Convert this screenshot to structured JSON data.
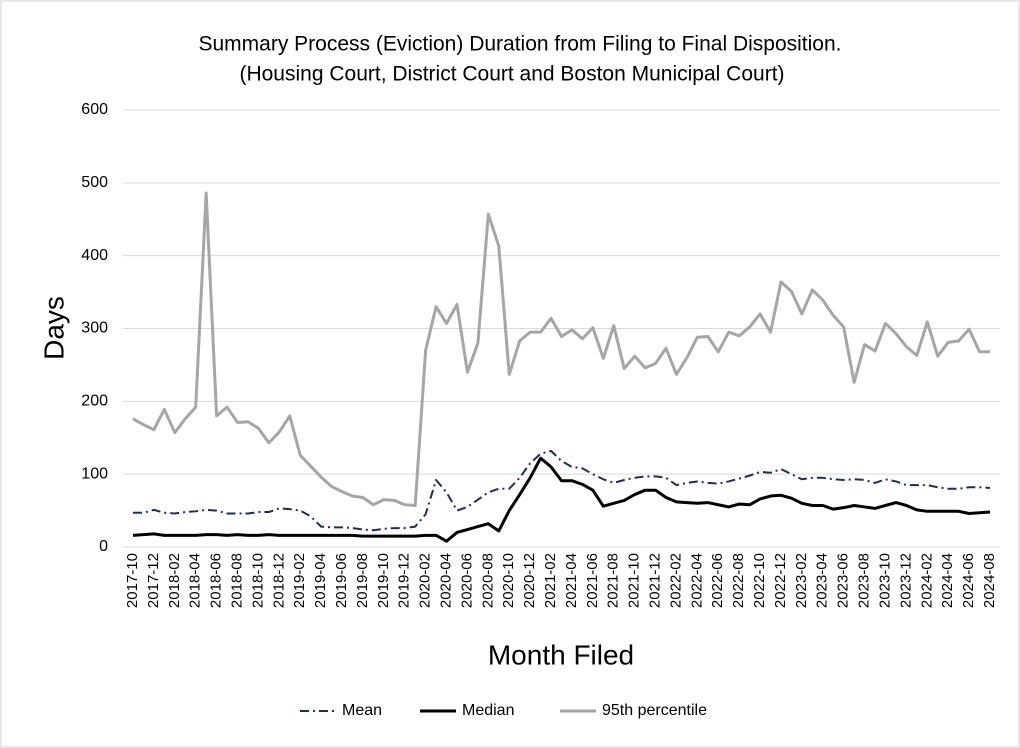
{
  "chart_data": {
    "type": "line",
    "title": "Summary Process (Eviction) Duration from Filing to Final Disposition.",
    "subtitle": "(Housing Court, District Court and Boston Municipal Court)",
    "y_label": "Days",
    "x_label": "Month Filed",
    "categories": [
      "2017-10",
      null,
      "2017-12",
      null,
      "2018-02",
      null,
      "2018-04",
      null,
      "2018-06",
      null,
      "2018-08",
      null,
      "2018-10",
      null,
      "2018-12",
      null,
      "2019-02",
      null,
      "2019-04",
      null,
      "2019-06",
      null,
      "2019-08",
      null,
      "2019-10",
      null,
      "2019-12",
      null,
      "2020-02",
      null,
      "2020-04",
      null,
      "2020-06",
      null,
      "2020-08",
      null,
      "2020-10",
      null,
      "2020-12",
      null,
      "2021-02",
      null,
      "2021-04",
      null,
      "2021-06",
      null,
      "2021-08",
      null,
      "2021-10",
      null,
      "2021-12",
      null,
      "2022-02",
      null,
      "2022-04",
      null,
      "2022-06",
      null,
      "2022-08",
      null,
      "2022-10",
      null,
      "2022-12",
      null,
      "2023-02",
      null,
      "2023-04",
      null,
      "2023-06",
      null,
      "2023-08",
      null,
      "2023-10",
      null,
      "2023-12",
      null,
      "2024-02",
      null,
      "2024-04",
      null,
      "2024-06",
      null,
      "2024-08"
    ],
    "series": [
      {
        "name": "Mean",
        "color": "#1f2d5a",
        "dash": true,
        "values": [
          47,
          47,
          51,
          47,
          46,
          48,
          49,
          51,
          50,
          46,
          46,
          46,
          48,
          48,
          53,
          52,
          50,
          42,
          28,
          27,
          27,
          26,
          24,
          23,
          25,
          26,
          26,
          28,
          45,
          92,
          75,
          50,
          55,
          65,
          75,
          80,
          80,
          95,
          115,
          128,
          132,
          118,
          110,
          108,
          100,
          93,
          88,
          92,
          95,
          97,
          97,
          95,
          85,
          88,
          90,
          88,
          87,
          90,
          94,
          98,
          103,
          102,
          107,
          100,
          93,
          95,
          95,
          93,
          92,
          93,
          92,
          88,
          93,
          90,
          85,
          85,
          85,
          82,
          80,
          80,
          82,
          82,
          81
        ]
      },
      {
        "name": "Median",
        "color": "#000000",
        "dash": false,
        "values": [
          16,
          17,
          18,
          16,
          16,
          16,
          16,
          17,
          17,
          16,
          17,
          16,
          16,
          17,
          16,
          16,
          16,
          16,
          16,
          16,
          16,
          16,
          15,
          15,
          15,
          15,
          15,
          15,
          16,
          16,
          8,
          20,
          24,
          28,
          32,
          22,
          50,
          72,
          95,
          122,
          110,
          91,
          91,
          86,
          78,
          56,
          60,
          64,
          72,
          78,
          78,
          68,
          62,
          61,
          60,
          61,
          58,
          55,
          59,
          58,
          66,
          70,
          71,
          67,
          60,
          57,
          57,
          52,
          54,
          57,
          55,
          53,
          57,
          61,
          57,
          51,
          49,
          49,
          49,
          49,
          46,
          47,
          48
        ]
      },
      {
        "name": "95th percentile",
        "color": "#a6a6a6",
        "dash": false,
        "values": [
          176,
          168,
          161,
          189,
          157,
          176,
          192,
          486,
          180,
          192,
          171,
          172,
          163,
          143,
          158,
          180,
          126,
          111,
          96,
          83,
          76,
          70,
          68,
          58,
          65,
          64,
          58,
          57,
          270,
          330,
          307,
          333,
          240,
          280,
          457,
          413,
          237,
          283,
          295,
          295,
          314,
          289,
          298,
          286,
          301,
          259,
          304,
          245,
          262,
          246,
          252,
          273,
          237,
          260,
          288,
          289,
          268,
          295,
          290,
          302,
          320,
          295,
          364,
          351,
          320,
          353,
          339,
          318,
          302,
          226,
          278,
          269,
          307,
          293,
          275,
          263,
          309,
          262,
          281,
          283,
          299,
          268,
          268
        ]
      }
    ],
    "ylim": [
      0,
      600
    ],
    "yticks": [
      0,
      100,
      200,
      300,
      400,
      500,
      600
    ],
    "grid": true,
    "legend": "bottom"
  }
}
